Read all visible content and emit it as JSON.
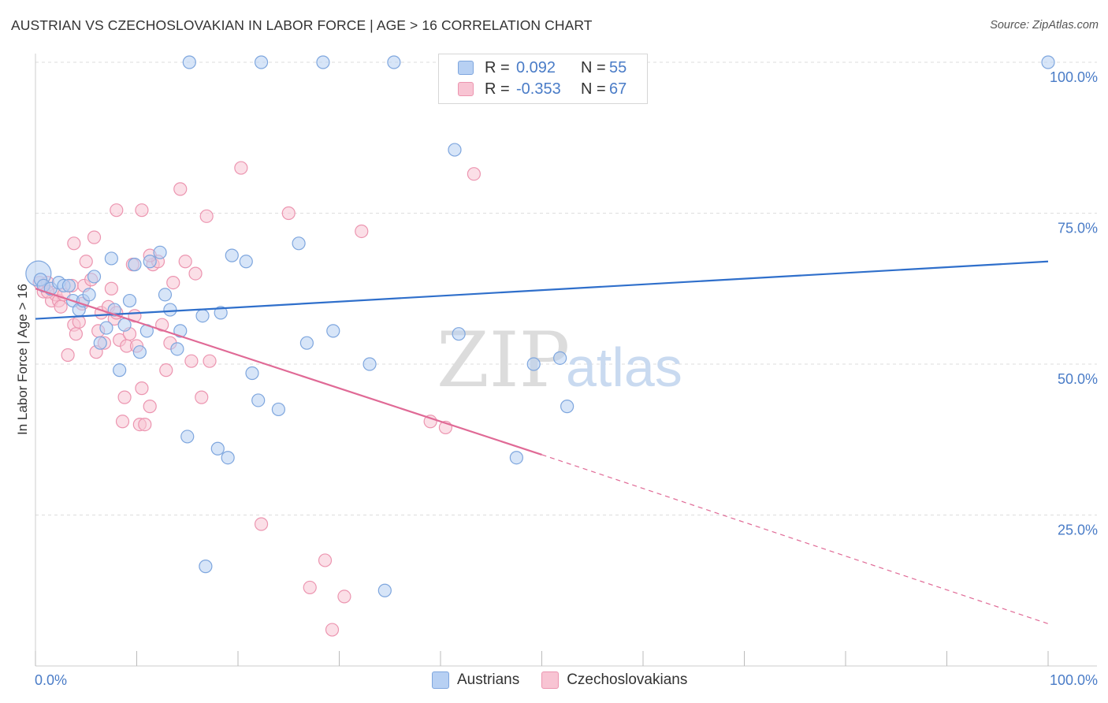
{
  "title": "AUSTRIAN VS CZECHOSLOVAKIAN IN LABOR FORCE | AGE > 16 CORRELATION CHART",
  "source": "Source: ZipAtlas.com",
  "watermark": {
    "zip": "ZIP",
    "atlas": "atlas"
  },
  "legend": {
    "r_label": "R =",
    "n_label": "N =",
    "rows": [
      {
        "series": "Austrians",
        "r": "0.092",
        "n": "55"
      },
      {
        "series": "Czechoslovakians",
        "r": "-0.353",
        "n": "67"
      }
    ]
  },
  "colors": {
    "austrians_fill": "#b7d0f3",
    "austrians_stroke": "#7ea6de",
    "austrians_line": "#2f6fcb",
    "czech_fill": "#f8c4d3",
    "czech_stroke": "#ec95b0",
    "czech_line": "#e06a96",
    "tick_label": "#4a7cc7",
    "grid": "#dddddd"
  },
  "chart_data": {
    "type": "scatter",
    "title": "AUSTRIAN VS CZECHOSLOVAKIAN IN LABOR FORCE | AGE > 16 CORRELATION CHART",
    "xlabel": "",
    "ylabel": "In Labor Force | Age > 16",
    "xlim": [
      0,
      100
    ],
    "ylim": [
      0,
      100
    ],
    "x_tick_labels": [
      "0.0%",
      "100.0%"
    ],
    "y_tick_labels": [
      "100.0%",
      "75.0%",
      "50.0%",
      "25.0%"
    ],
    "y_ticks": [
      100,
      75,
      50,
      25
    ],
    "grid": true,
    "legend_position": "top-center",
    "series": [
      {
        "name": "Austrians",
        "r": 0.092,
        "n": 55,
        "trend": {
          "x": [
            0,
            100
          ],
          "y": [
            57.5,
            67.0
          ],
          "dashed_from": null
        },
        "points": [
          {
            "x": 0.3,
            "y": 65.0,
            "big": true
          },
          {
            "x": 0.5,
            "y": 64.0
          },
          {
            "x": 0.8,
            "y": 63.0
          },
          {
            "x": 1.5,
            "y": 62.5
          },
          {
            "x": 2.3,
            "y": 63.5
          },
          {
            "x": 2.8,
            "y": 63.0
          },
          {
            "x": 3.3,
            "y": 63.0
          },
          {
            "x": 3.7,
            "y": 60.5
          },
          {
            "x": 4.3,
            "y": 59.0
          },
          {
            "x": 4.7,
            "y": 60.5
          },
          {
            "x": 5.3,
            "y": 61.5
          },
          {
            "x": 5.8,
            "y": 64.5
          },
          {
            "x": 6.4,
            "y": 53.5
          },
          {
            "x": 7.0,
            "y": 56.0
          },
          {
            "x": 7.5,
            "y": 67.5
          },
          {
            "x": 7.8,
            "y": 59.0
          },
          {
            "x": 8.3,
            "y": 49.0
          },
          {
            "x": 8.8,
            "y": 56.5
          },
          {
            "x": 9.3,
            "y": 60.5
          },
          {
            "x": 9.8,
            "y": 66.5
          },
          {
            "x": 10.3,
            "y": 52.0
          },
          {
            "x": 11.0,
            "y": 55.5
          },
          {
            "x": 11.3,
            "y": 67.0
          },
          {
            "x": 12.3,
            "y": 68.5
          },
          {
            "x": 12.8,
            "y": 61.5
          },
          {
            "x": 13.3,
            "y": 59.0
          },
          {
            "x": 14.0,
            "y": 52.5
          },
          {
            "x": 14.3,
            "y": 55.5
          },
          {
            "x": 15.0,
            "y": 38.0
          },
          {
            "x": 15.2,
            "y": 100.0
          },
          {
            "x": 16.5,
            "y": 58.0
          },
          {
            "x": 16.8,
            "y": 16.5
          },
          {
            "x": 18.0,
            "y": 36.0
          },
          {
            "x": 18.3,
            "y": 58.5
          },
          {
            "x": 19.0,
            "y": 34.5
          },
          {
            "x": 19.4,
            "y": 68.0
          },
          {
            "x": 20.8,
            "y": 67.0
          },
          {
            "x": 21.4,
            "y": 48.5
          },
          {
            "x": 22.0,
            "y": 44.0
          },
          {
            "x": 22.3,
            "y": 100.0
          },
          {
            "x": 24.0,
            "y": 42.5
          },
          {
            "x": 26.0,
            "y": 70.0
          },
          {
            "x": 26.8,
            "y": 53.5
          },
          {
            "x": 28.4,
            "y": 100.0
          },
          {
            "x": 29.4,
            "y": 55.5
          },
          {
            "x": 33.0,
            "y": 50.0
          },
          {
            "x": 34.5,
            "y": 12.5
          },
          {
            "x": 35.4,
            "y": 100.0
          },
          {
            "x": 41.4,
            "y": 85.5
          },
          {
            "x": 41.8,
            "y": 55.0
          },
          {
            "x": 47.5,
            "y": 34.5
          },
          {
            "x": 49.2,
            "y": 50.0
          },
          {
            "x": 51.8,
            "y": 51.0
          },
          {
            "x": 52.5,
            "y": 43.0
          },
          {
            "x": 100.0,
            "y": 100.0
          }
        ]
      },
      {
        "name": "Czechoslovakians",
        "r": -0.353,
        "n": 67,
        "trend": {
          "x": [
            0,
            50,
            100
          ],
          "y": [
            62.5,
            35.0,
            7.0
          ],
          "dashed_from": 50
        },
        "points": [
          {
            "x": 0.4,
            "y": 63.5
          },
          {
            "x": 0.8,
            "y": 62.0
          },
          {
            "x": 1.2,
            "y": 63.5
          },
          {
            "x": 1.6,
            "y": 60.5
          },
          {
            "x": 2.0,
            "y": 61.5
          },
          {
            "x": 2.3,
            "y": 60.5
          },
          {
            "x": 2.5,
            "y": 59.5
          },
          {
            "x": 2.8,
            "y": 61.5
          },
          {
            "x": 3.2,
            "y": 51.5
          },
          {
            "x": 3.6,
            "y": 63.0
          },
          {
            "x": 3.8,
            "y": 56.5
          },
          {
            "x": 4.0,
            "y": 55.0
          },
          {
            "x": 4.3,
            "y": 57.0
          },
          {
            "x": 4.6,
            "y": 60.0
          },
          {
            "x": 4.8,
            "y": 63.0
          },
          {
            "x": 5.0,
            "y": 67.0
          },
          {
            "x": 5.5,
            "y": 64.0
          },
          {
            "x": 5.8,
            "y": 71.0
          },
          {
            "x": 6.0,
            "y": 52.0
          },
          {
            "x": 6.2,
            "y": 55.5
          },
          {
            "x": 6.5,
            "y": 58.5
          },
          {
            "x": 6.8,
            "y": 53.5
          },
          {
            "x": 7.2,
            "y": 59.5
          },
          {
            "x": 7.5,
            "y": 62.5
          },
          {
            "x": 7.8,
            "y": 57.5
          },
          {
            "x": 8.0,
            "y": 58.5
          },
          {
            "x": 8.3,
            "y": 54.0
          },
          {
            "x": 8.6,
            "y": 40.5
          },
          {
            "x": 8.8,
            "y": 44.5
          },
          {
            "x": 9.0,
            "y": 53.0
          },
          {
            "x": 9.3,
            "y": 55.0
          },
          {
            "x": 9.6,
            "y": 66.5
          },
          {
            "x": 10.0,
            "y": 53.0
          },
          {
            "x": 10.3,
            "y": 40.0
          },
          {
            "x": 10.5,
            "y": 46.0
          },
          {
            "x": 10.8,
            "y": 40.0
          },
          {
            "x": 11.3,
            "y": 43.0
          },
          {
            "x": 11.6,
            "y": 66.5
          },
          {
            "x": 12.1,
            "y": 67.0
          },
          {
            "x": 12.5,
            "y": 56.5
          },
          {
            "x": 12.9,
            "y": 49.0
          },
          {
            "x": 13.3,
            "y": 53.5
          },
          {
            "x": 13.6,
            "y": 63.5
          },
          {
            "x": 14.3,
            "y": 79.0
          },
          {
            "x": 14.8,
            "y": 67.0
          },
          {
            "x": 15.4,
            "y": 50.5
          },
          {
            "x": 15.8,
            "y": 65.0
          },
          {
            "x": 16.4,
            "y": 44.5
          },
          {
            "x": 16.9,
            "y": 74.5
          },
          {
            "x": 17.2,
            "y": 50.5
          },
          {
            "x": 8.0,
            "y": 75.5
          },
          {
            "x": 10.5,
            "y": 75.5
          },
          {
            "x": 20.3,
            "y": 82.5
          },
          {
            "x": 22.3,
            "y": 23.5
          },
          {
            "x": 25.0,
            "y": 75.0
          },
          {
            "x": 27.1,
            "y": 13.0
          },
          {
            "x": 28.6,
            "y": 17.5
          },
          {
            "x": 29.3,
            "y": 6.0
          },
          {
            "x": 30.5,
            "y": 11.5
          },
          {
            "x": 32.2,
            "y": 72.0
          },
          {
            "x": 39.0,
            "y": 40.5
          },
          {
            "x": 40.5,
            "y": 39.5
          },
          {
            "x": 43.3,
            "y": 81.5
          },
          {
            "x": 3.8,
            "y": 70.0
          },
          {
            "x": 9.8,
            "y": 58.0
          },
          {
            "x": 1.2,
            "y": 62.0
          },
          {
            "x": 11.3,
            "y": 68.0
          }
        ]
      }
    ]
  }
}
